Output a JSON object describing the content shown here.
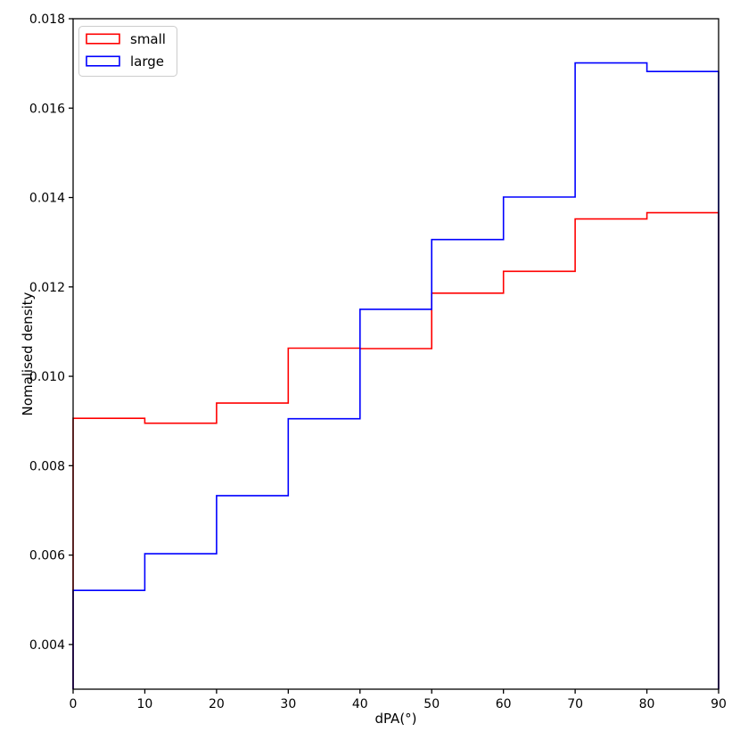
{
  "chart_data": {
    "type": "step-histogram",
    "title": "",
    "xlabel": "dPA(°)",
    "ylabel": "Nomalised density",
    "xlim": [
      0,
      90
    ],
    "ylim": [
      0.003,
      0.018
    ],
    "xticks": [
      0,
      10,
      20,
      30,
      40,
      50,
      60,
      70,
      80,
      90
    ],
    "xtick_labels": [
      "0",
      "10",
      "20",
      "30",
      "40",
      "50",
      "60",
      "70",
      "80",
      "90"
    ],
    "yticks": [
      0.004,
      0.006,
      0.008,
      0.01,
      0.012,
      0.014,
      0.016,
      0.018
    ],
    "ytick_labels": [
      "0.004",
      "0.006",
      "0.008",
      "0.010",
      "0.012",
      "0.014",
      "0.016",
      "0.018"
    ],
    "grid": false,
    "bin_edges": [
      0,
      10,
      20,
      30,
      40,
      50,
      60,
      70,
      80,
      90
    ],
    "series": [
      {
        "name": "small",
        "color": "#ff0000",
        "values": [
          0.00906,
          0.00895,
          0.0094,
          0.01063,
          0.01062,
          0.01186,
          0.01235,
          0.01352,
          0.01366
        ]
      },
      {
        "name": "large",
        "color": "#0000ff",
        "values": [
          0.00521,
          0.00603,
          0.00733,
          0.00905,
          0.0115,
          0.01306,
          0.01401,
          0.01701,
          0.01682
        ]
      }
    ],
    "legend": {
      "position": "upper-left",
      "border_color": "#cccccc",
      "background": "#ffffff"
    },
    "axis_color": "#000000"
  }
}
